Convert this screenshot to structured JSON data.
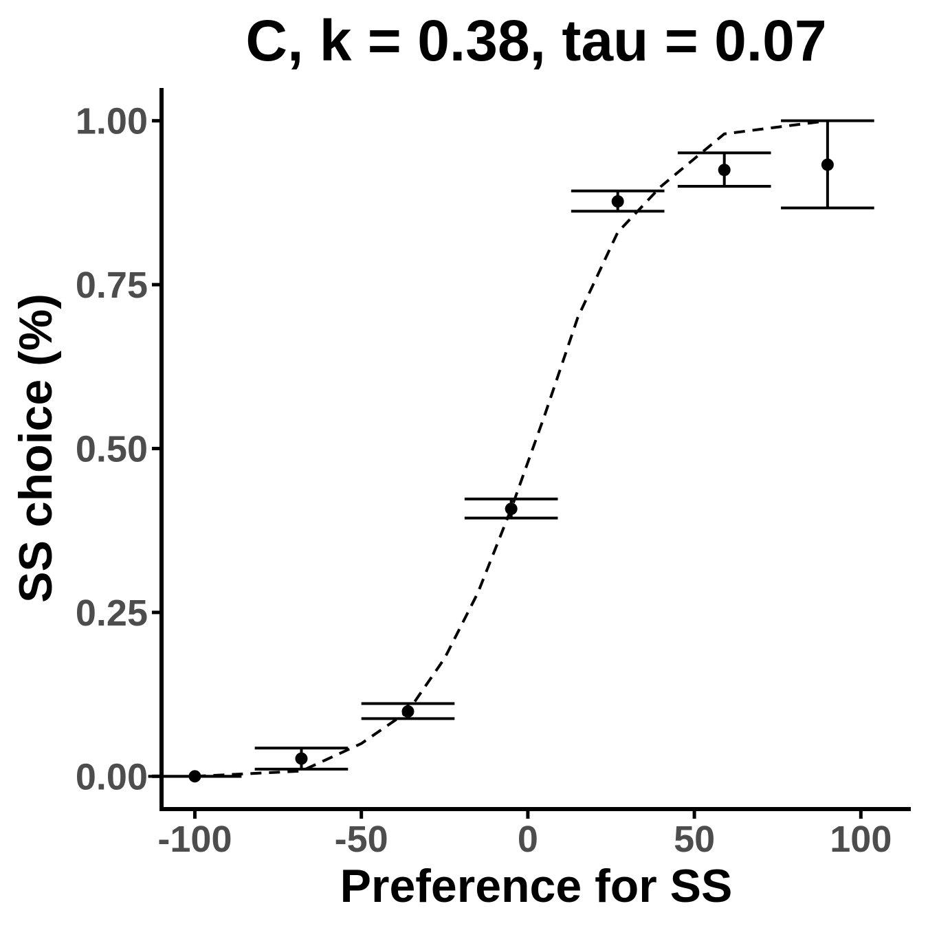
{
  "chart_data": {
    "type": "scatter",
    "title": "C, k = 0.38, tau = 0.07",
    "xlabel": "Preference for SS",
    "ylabel": "SS choice (%)",
    "xlim": [
      -110,
      115
    ],
    "ylim": [
      -0.05,
      1.05
    ],
    "x_ticks": [
      -100,
      -50,
      0,
      50,
      100
    ],
    "x_tick_labels": [
      "-100",
      "-50",
      "0",
      "50",
      "100"
    ],
    "y_ticks": [
      0,
      0.25,
      0.5,
      0.75,
      1.0
    ],
    "y_tick_labels": [
      "0.00",
      "0.25",
      "0.50",
      "0.75",
      "1.00"
    ],
    "grid": false,
    "legend": "none",
    "points": [
      {
        "x": -100,
        "y": 0.0,
        "ymin": 0.0,
        "ymax": 0.0,
        "xmin": -114,
        "xmax": -86
      },
      {
        "x": -68,
        "y": 0.027,
        "ymin": 0.011,
        "ymax": 0.043,
        "xmin": -82,
        "xmax": -54
      },
      {
        "x": -36,
        "y": 0.099,
        "ymin": 0.088,
        "ymax": 0.111,
        "xmin": -50,
        "xmax": -22
      },
      {
        "x": -5,
        "y": 0.408,
        "ymin": 0.394,
        "ymax": 0.423,
        "xmin": -19,
        "xmax": 9
      },
      {
        "x": 27,
        "y": 0.877,
        "ymin": 0.862,
        "ymax": 0.893,
        "xmin": 13,
        "xmax": 41
      },
      {
        "x": 59,
        "y": 0.925,
        "ymin": 0.9,
        "ymax": 0.951,
        "xmin": 45,
        "xmax": 73
      },
      {
        "x": 90,
        "y": 0.933,
        "ymin": 0.867,
        "ymax": 1.0,
        "xmin": 76,
        "xmax": 104
      }
    ],
    "fit_line": {
      "style": "dashed",
      "x": [
        -100,
        -68,
        -50,
        -36,
        -25,
        -15,
        -5,
        5,
        15,
        27,
        40,
        59,
        90
      ],
      "y": [
        0.0,
        0.008,
        0.05,
        0.099,
        0.18,
        0.28,
        0.408,
        0.55,
        0.7,
        0.83,
        0.9,
        0.98,
        1.0
      ]
    },
    "colors": {
      "points": "#000000",
      "line": "#000000",
      "tick_labels": "#4d4d4d",
      "axis": "#000000"
    }
  }
}
